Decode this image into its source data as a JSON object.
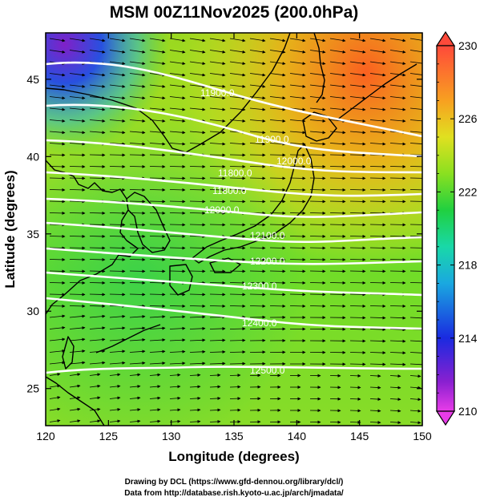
{
  "title": "MSM 00Z11Nov2025 (200.0hPa)",
  "x_axis": {
    "label": "Longitude (degrees)",
    "ticks": [
      "120",
      "125",
      "130",
      "135",
      "140",
      "145",
      "150"
    ]
  },
  "y_axis": {
    "label": "Latitude  (degrees)",
    "ticks": [
      "25",
      "30",
      "35",
      "40",
      "45"
    ]
  },
  "colorbar": {
    "ticks": [
      "210",
      "214",
      "218",
      "222",
      "226",
      "230"
    ],
    "min": 210,
    "max": 230
  },
  "contour_labels": [
    "11900.0",
    "11900.0",
    "12000.0",
    "11800.0",
    "11800.0",
    "12000.0",
    "12100.0",
    "12200.0",
    "12300.0",
    "12400.0",
    "12500.0"
  ],
  "credits": [
    "Drawing by DCL (https://www.gfd-dennou.org/library/dcl/)",
    "Data from http://database.rish.kyoto-u.ac.jp/arch/jmadata/"
  ],
  "colors": {
    "coastline": "#000000",
    "contour": "#ffffff",
    "wind_vector": "#000000",
    "scale_low": "#e040e0",
    "scale_high": "#ff5030"
  }
}
